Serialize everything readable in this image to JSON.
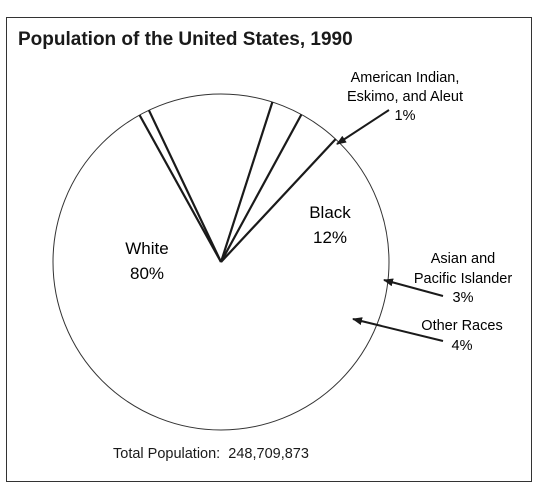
{
  "chart_data": {
    "type": "pie",
    "title": "Population of the United States, 1990",
    "slices": [
      {
        "label": "White",
        "value": 80,
        "value_text": "80%"
      },
      {
        "label": "Black",
        "value": 12,
        "value_text": "12%"
      },
      {
        "label": "American Indian, Eskimo, and Aleut",
        "label_lines": [
          "American Indian,",
          "Eskimo, and Aleut"
        ],
        "value": 1,
        "value_text": "1%"
      },
      {
        "label": "Asian and Pacific Islander",
        "label_lines": [
          "Asian and",
          "Pacific Islander"
        ],
        "value": 3,
        "value_text": "3%"
      },
      {
        "label": "Other Races",
        "label_lines": [
          "Other Races"
        ],
        "value": 4,
        "value_text": "4%"
      }
    ],
    "total_label": "Total Population:",
    "total_value": "248,709,873"
  }
}
